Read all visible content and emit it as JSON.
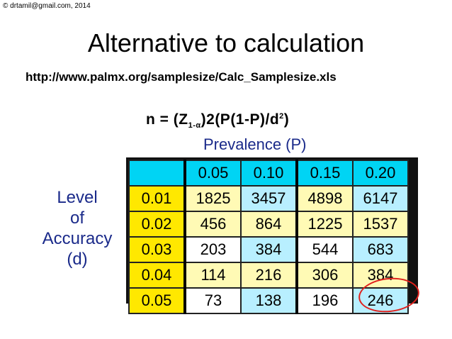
{
  "copyright": "© drtamil@gmail.com, 2014",
  "title": "Alternative to calculation",
  "url": "http://www.palmx.org/samplesize/Calc_Samplesize.xls",
  "formula": {
    "prefix": "n = (Z",
    "sub": "1-α",
    "mid": ")2(P(1-P)/d",
    "sup": "2",
    "suffix": ")"
  },
  "prevalence_label": "Prevalence (P)",
  "accuracy_label": [
    "Level",
    "of",
    "Accuracy",
    "(d)"
  ],
  "table": {
    "columns": [
      "0.05",
      "0.10",
      "0.15",
      "0.20"
    ],
    "rows": [
      {
        "d": "0.01",
        "values": [
          "1825",
          "3457",
          "4898",
          "6147"
        ]
      },
      {
        "d": "0.02",
        "values": [
          "456",
          "864",
          "1225",
          "1537"
        ]
      },
      {
        "d": "0.03",
        "values": [
          "203",
          "384",
          "544",
          "683"
        ]
      },
      {
        "d": "0.04",
        "values": [
          "114",
          "216",
          "306",
          "384"
        ]
      },
      {
        "d": "0.05",
        "values": [
          "73",
          "138",
          "196",
          "246"
        ]
      }
    ]
  },
  "colors": {
    "header": "#00d4f4",
    "row_header": "#ffe800",
    "highlight_circle": "#e0201c"
  }
}
